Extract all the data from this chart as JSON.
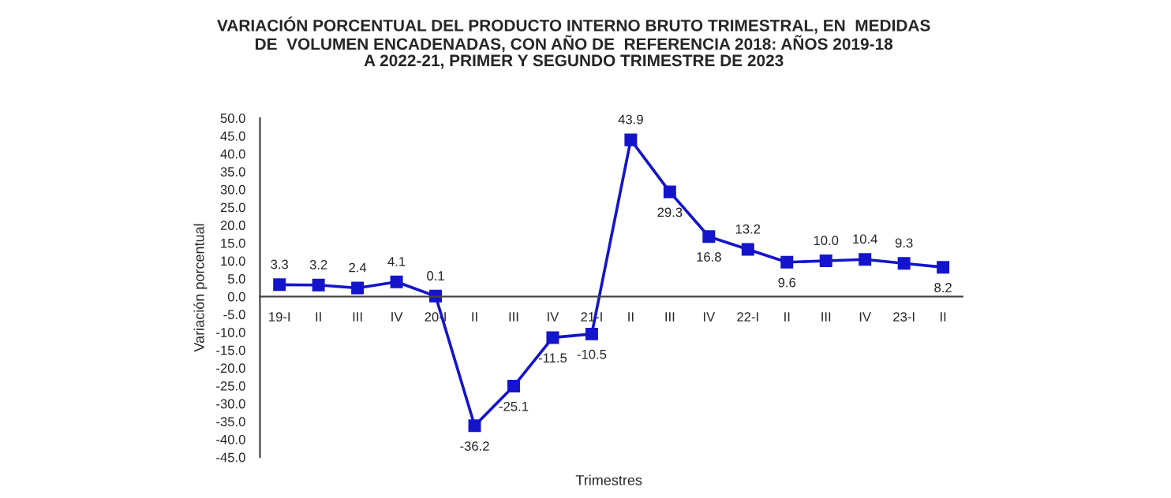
{
  "chart_data": {
    "type": "line",
    "title": "VARIACIÓN PORCENTUAL DEL PRODUCTO INTERNO BRUTO TRIMESTRAL, EN  MEDIDAS\nDE  VOLUMEN ENCADENADAS, CON AÑO DE  REFERENCIA 2018: AÑOS 2019-18\nA 2022-21, PRIMER Y SEGUNDO TRIMESTRE DE 2023",
    "xlabel": "Trimestres",
    "ylabel": "Variación porcentual",
    "categories": [
      "19-I",
      "II",
      "III",
      "IV",
      "20-I",
      "II",
      "III",
      "IV",
      "21-I",
      "II",
      "III",
      "IV",
      "22-I",
      "II",
      "III",
      "IV",
      "23-I",
      "II"
    ],
    "series": [
      {
        "color": "#1414cc",
        "values": [
          3.3,
          3.2,
          2.4,
          4.1,
          0.1,
          -36.2,
          -25.1,
          -11.5,
          -10.5,
          43.9,
          29.3,
          16.8,
          13.2,
          9.6,
          10.0,
          10.4,
          9.3,
          8.2
        ]
      }
    ],
    "ylim": [
      -45,
      50
    ],
    "yticks": [
      {
        "value": -45,
        "label": "-45.0"
      },
      {
        "value": -40,
        "label": "-40.0"
      },
      {
        "value": -35,
        "label": "-35.0"
      },
      {
        "value": -30,
        "label": "-30.0"
      },
      {
        "value": -25,
        "label": "-25.0"
      },
      {
        "value": -20,
        "label": "-20.0"
      },
      {
        "value": -15,
        "label": "-15.0"
      },
      {
        "value": -10,
        "label": "-10.0"
      },
      {
        "value": -5,
        "label": "-5.0"
      },
      {
        "value": 0,
        "label": "0.0"
      },
      {
        "value": 5,
        "label": "5.0"
      },
      {
        "value": 10,
        "label": "10.0"
      },
      {
        "value": 15,
        "label": "15.0"
      },
      {
        "value": 20,
        "label": "20.0"
      },
      {
        "value": 25,
        "label": "25.0"
      },
      {
        "value": 30,
        "label": "30.0"
      },
      {
        "value": 35,
        "label": "35.0"
      },
      {
        "value": 40,
        "label": "40.0"
      },
      {
        "value": 45,
        "label": "45.0"
      },
      {
        "value": 50,
        "label": "50.0"
      }
    ],
    "value_labels": [
      "3.3",
      "3.2",
      "2.4",
      "4.1",
      "0.1",
      "-36.2",
      "-25.1",
      "-11.5",
      "-10.5",
      "43.9",
      "29.3",
      "16.8",
      "13.2",
      "9.6",
      "10.0",
      "10.4",
      "9.3",
      "8.2"
    ],
    "marker": "square",
    "line_style": "solid",
    "grid": false,
    "legend": false
  }
}
